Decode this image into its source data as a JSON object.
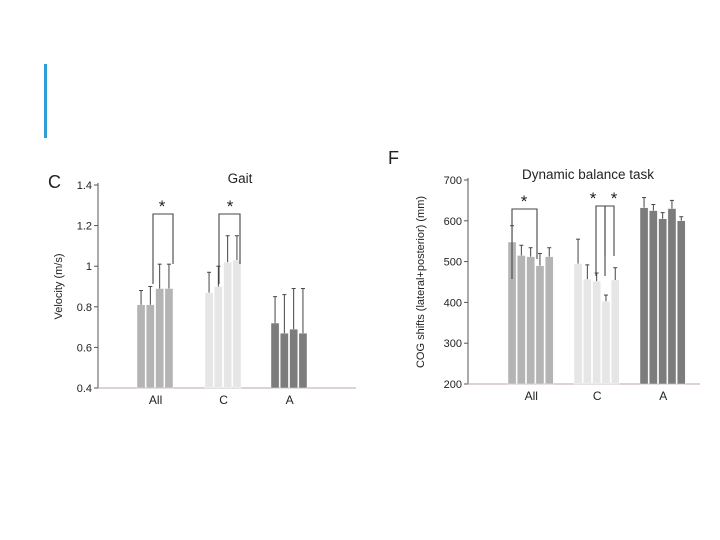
{
  "slide": {
    "accent_color": "#2e9fd6"
  },
  "chart_data": [
    {
      "type": "bar",
      "panel_label": "C",
      "title": "Gait",
      "xlabel": "",
      "ylabel": "Velocity (m/s)",
      "ylim": [
        0.4,
        1.4
      ],
      "yticks": [
        0.4,
        0.6,
        0.8,
        1,
        1.2,
        1.4
      ],
      "categories": [
        "All",
        "C",
        "A"
      ],
      "group_colors": [
        "#b4b4b4",
        "#e6e6e6",
        "#7c7c7c"
      ],
      "bars_per_group": 4,
      "values": [
        [
          0.81,
          0.81,
          0.89,
          0.89
        ],
        [
          0.87,
          0.9,
          1.02,
          1.03
        ],
        [
          0.72,
          0.67,
          0.69,
          0.67
        ]
      ],
      "errors": [
        [
          0.07,
          0.09,
          0.12,
          0.12
        ],
        [
          0.1,
          0.1,
          0.13,
          0.12
        ],
        [
          0.13,
          0.19,
          0.2,
          0.22
        ]
      ],
      "significance": [
        {
          "category": 0,
          "label": "*"
        },
        {
          "category": 1,
          "label": "*"
        }
      ],
      "grid": false
    },
    {
      "type": "bar",
      "panel_label": "F",
      "title": "Dynamic balance task",
      "xlabel": "",
      "ylabel": "COG shifts (lateral+posterior) (mm)",
      "ylim": [
        200,
        700
      ],
      "yticks": [
        200,
        300,
        400,
        500,
        600,
        700
      ],
      "categories": [
        "All",
        "C",
        "A"
      ],
      "group_colors": [
        "#b4b4b4",
        "#e6e6e6",
        "#7c7c7c"
      ],
      "bars_per_group": 5,
      "values": [
        [
          548,
          515,
          512,
          490,
          512
        ],
        [
          495,
          457,
          452,
          403,
          455
        ],
        [
          632,
          625,
          605,
          630,
          600
        ]
      ],
      "errors": [
        [
          40,
          25,
          22,
          30,
          22
        ],
        [
          60,
          35,
          20,
          15,
          30
        ],
        [
          25,
          15,
          15,
          20,
          10
        ]
      ],
      "significance": [
        {
          "category": 0,
          "label": "*"
        },
        {
          "category": 1,
          "label": "*"
        },
        {
          "category": 1,
          "label": "*"
        }
      ],
      "grid": false
    }
  ]
}
